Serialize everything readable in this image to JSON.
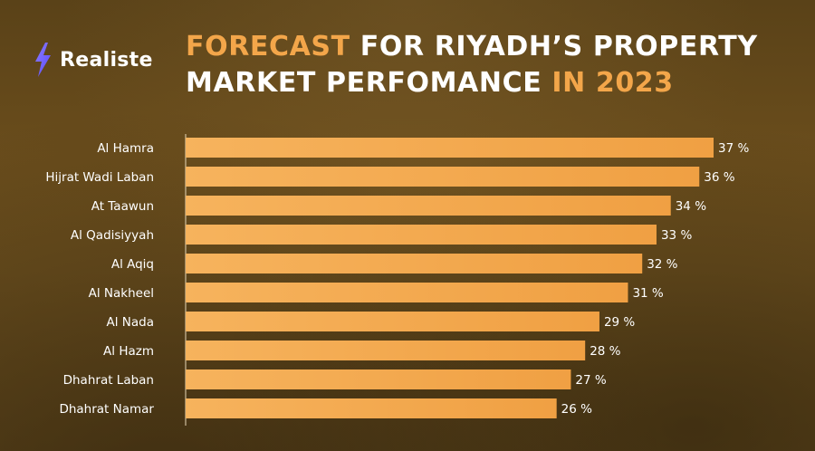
{
  "brand": {
    "name": "Realiste",
    "icon": "lightning-bolt-icon"
  },
  "title": {
    "part1": "FORECAST",
    "part2": " FOR RIYADH’S PROPERTY MARKET PERFOMANCE",
    "part3": " IN 2023"
  },
  "colors": {
    "accent": "#f3a64a",
    "bar_start": "#f5b15a",
    "bar_end": "#f1a043",
    "text": "#ffffff",
    "axis": "#e8d8b8"
  },
  "chart_data": {
    "type": "bar",
    "orientation": "horizontal",
    "categories": [
      "Al Hamra",
      "Hijrat Wadi Laban",
      "At Taawun",
      "Al Qadisiyyah",
      "Al Aqiq",
      "Al Nakheel",
      "Al Nada",
      "Al Hazm",
      "Dhahrat Laban",
      "Dhahrat Namar"
    ],
    "values": [
      37,
      36,
      34,
      33,
      32,
      31,
      29,
      28,
      27,
      26
    ],
    "value_labels": [
      "37 %",
      "36 %",
      "34 %",
      "33 %",
      "32 %",
      "31 %",
      "29 %",
      "28 %",
      "27 %",
      "26 %"
    ],
    "unit": "%",
    "xlim": [
      0,
      37
    ],
    "grid": false,
    "legend": "none"
  }
}
